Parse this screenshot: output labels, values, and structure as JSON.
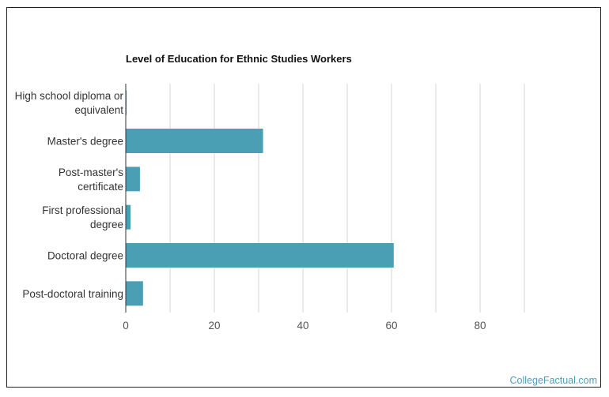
{
  "chart_data": {
    "type": "bar",
    "orientation": "horizontal",
    "title": "Level of Education for Ethnic Studies Workers",
    "categories": [
      [
        "High school diploma or",
        "equivalent"
      ],
      [
        "Master's degree"
      ],
      [
        "Post-master's",
        "certificate"
      ],
      [
        "First professional",
        "degree"
      ],
      [
        "Doctoral degree"
      ],
      [
        "Post-doctoral training"
      ]
    ],
    "values": [
      0.2,
      31,
      3.2,
      1.1,
      60.5,
      3.9
    ],
    "xlim": [
      0,
      90
    ],
    "xticks": [
      0,
      20,
      40,
      60,
      80
    ],
    "grid": true,
    "bar_color": "#4a9fb5",
    "grid_color": "#d4d4d4"
  },
  "watermark": "CollegeFactual.com"
}
